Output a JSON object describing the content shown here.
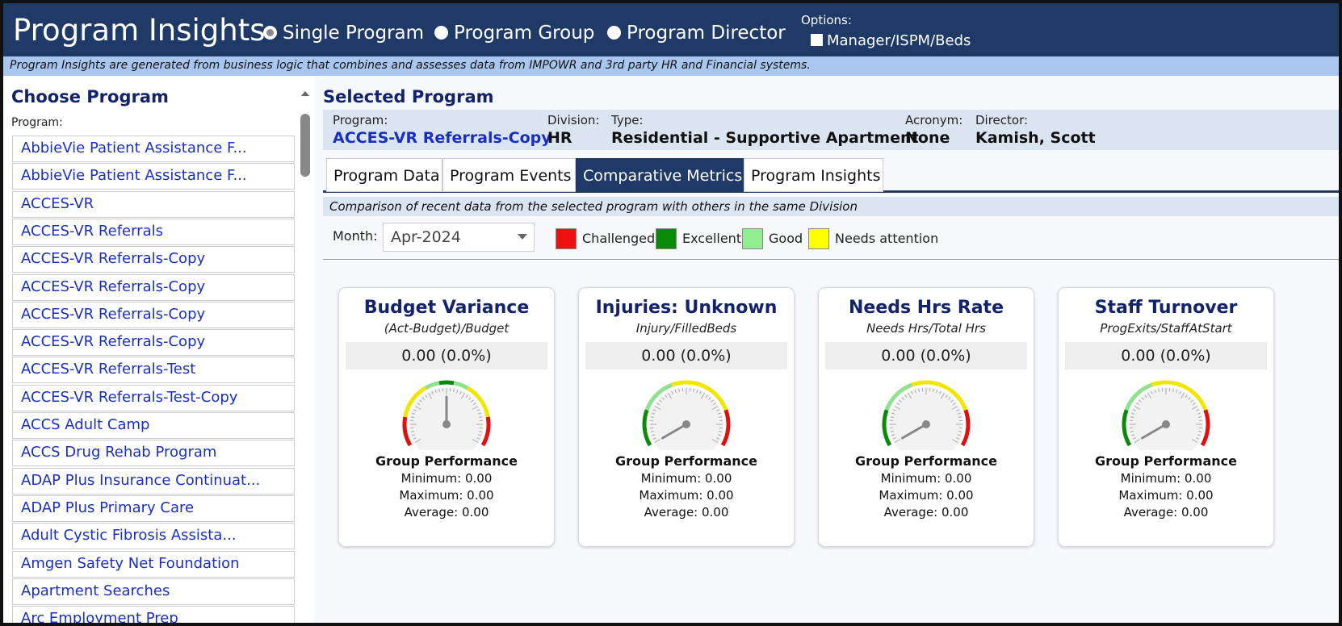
{
  "header": {
    "title": "Program Insights",
    "modes": [
      "Single Program",
      "Program Group",
      "Program Director"
    ],
    "options_label": "Options:",
    "options": [
      "Manager/ISPM/Beds"
    ]
  },
  "banner": "Program Insights are generated from business logic that combines and assesses data from IMPOWR and 3rd party HR and Financial systems.",
  "sidebar": {
    "title": "Choose Program",
    "label": "Program:",
    "programs": [
      "AbbieVie Patient Assistance F...",
      "AbbieVie Patient Assistance F...",
      "ACCES-VR",
      "ACCES-VR Referrals",
      "ACCES-VR Referrals-Copy",
      "ACCES-VR Referrals-Copy",
      "ACCES-VR Referrals-Copy",
      "ACCES-VR Referrals-Copy",
      "ACCES-VR Referrals-Test",
      "ACCES-VR Referrals-Test-Copy",
      "ACCS Adult Camp",
      "ACCS Drug Rehab Program",
      "ADAP Plus Insurance Continuat...",
      "ADAP Plus Primary Care",
      "Adult Cystic Fibrosis Assista...",
      "Amgen Safety Net Foundation",
      "Apartment Searches",
      "Arc Employment Prep"
    ]
  },
  "selected": {
    "title": "Selected Program",
    "fields": [
      {
        "label": "Program:",
        "value": "ACCES-VR Referrals-Copy"
      },
      {
        "label": "Division:",
        "value": "HR"
      },
      {
        "label": "Type:",
        "value": "Residential - Supportive Apartment"
      },
      {
        "label": "Acronym:",
        "value": "None"
      },
      {
        "label": "Director:",
        "value": "Kamish, Scott"
      }
    ]
  },
  "tabs": [
    "Program Data",
    "Program Events",
    "Comparative Metrics",
    "Program Insights"
  ],
  "comparison": {
    "note": "Comparison of recent data from the selected program with others in the same Division",
    "month_label": "Month:",
    "month": "Apr-2024",
    "legend": [
      {
        "label": "Challenged",
        "color": "#ee1111"
      },
      {
        "label": "Excellent",
        "color": "#0a8a0a"
      },
      {
        "label": "Good",
        "color": "#90ee90"
      },
      {
        "label": "Needs attention",
        "color": "#ffff00"
      }
    ]
  },
  "cards": [
    {
      "title": "Budget Variance",
      "formula": "(Act-Budget)/Budget",
      "value": "0.00 (0.0%)",
      "group_title": "Group Performance",
      "minimum": "Minimum: 0.00",
      "maximum": "Maximum: 0.00",
      "average": "Average: 0.00"
    },
    {
      "title": "Injuries: Unknown",
      "formula": "Injury/FilledBeds",
      "value": "0.00 (0.0%)",
      "group_title": "Group Performance",
      "minimum": "Minimum: 0.00",
      "maximum": "Maximum: 0.00",
      "average": "Average: 0.00"
    },
    {
      "title": "Needs Hrs Rate",
      "formula": "Needs Hrs/Total Hrs",
      "value": "0.00 (0.0%)",
      "group_title": "Group Performance",
      "minimum": "Minimum: 0.00",
      "maximum": "Maximum: 0.00",
      "average": "Average: 0.00"
    },
    {
      "title": "Staff Turnover",
      "formula": "ProgExits/StaffAtStart",
      "value": "0.00 (0.0%)",
      "group_title": "Group Performance",
      "minimum": "Minimum: 0.00",
      "maximum": "Maximum: 0.00",
      "average": "Average: 0.00"
    }
  ]
}
